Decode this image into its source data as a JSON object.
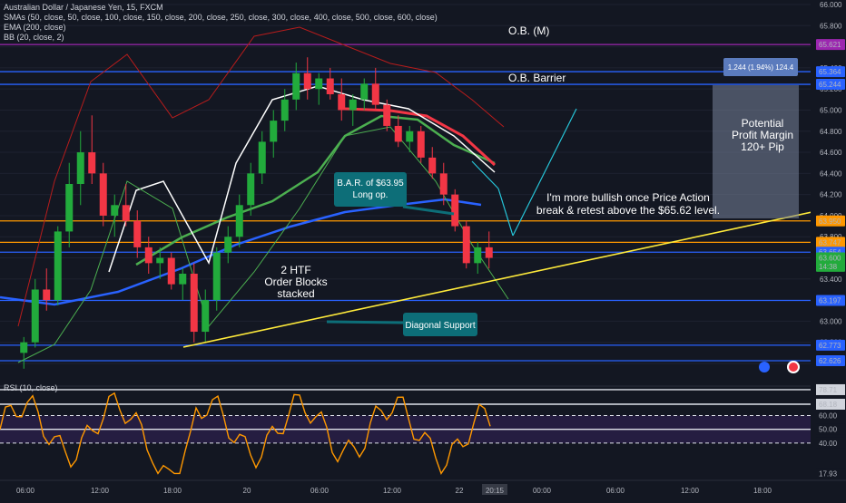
{
  "header": {
    "symbol": "Australian Dollar / Japanese Yen, 15, FXCM",
    "smas": "SMAs (50, close, 50, close, 100, close, 150, close, 200, close, 250, close, 300, close, 400, close, 500, close, 600, close)",
    "ema": "EMA (200, close)",
    "bb": "BB (20, close, 2)",
    "rsi": "RSI (10, close)"
  },
  "chart_data": {
    "type": "candlestick",
    "price_axis_ticks": [
      "66.000",
      "65.800",
      "65.600",
      "65.400",
      "65.200",
      "65.000",
      "64.800",
      "64.600",
      "64.400",
      "64.200",
      "64.000",
      "63.800",
      "63.600",
      "63.400",
      "63.200",
      "63.000",
      "62.800",
      "62.600"
    ],
    "price_labels": [
      {
        "value": "65.621",
        "color": "#9c27b0"
      },
      {
        "value": "65.364",
        "color": "#2962ff"
      },
      {
        "value": "65.244",
        "color": "#2962ff"
      },
      {
        "value": "63.950",
        "color": "#ff9800"
      },
      {
        "value": "63.747",
        "color": "#ff9800"
      },
      {
        "value": "63.654",
        "color": "#2962ff"
      },
      {
        "value": "63.600",
        "color": "#22ab3c"
      },
      {
        "value": "14:38",
        "color": "#22ab3c"
      },
      {
        "value": "63.197",
        "color": "#2962ff"
      },
      {
        "value": "62.773",
        "color": "#2962ff"
      },
      {
        "value": "62.626",
        "color": "#2962ff"
      }
    ],
    "horizontal_levels": [
      {
        "value": 65.621,
        "color": "#9c27b0"
      },
      {
        "value": 65.364,
        "color": "#2962ff"
      },
      {
        "value": 65.244,
        "color": "#2962ff"
      },
      {
        "value": 63.95,
        "color": "#ff9800"
      },
      {
        "value": 63.747,
        "color": "#ff9800"
      },
      {
        "value": 63.654,
        "color": "#2962ff"
      },
      {
        "value": 63.197,
        "color": "#2962ff"
      },
      {
        "value": 62.773,
        "color": "#2962ff"
      },
      {
        "value": 62.626,
        "color": "#2962ff"
      }
    ],
    "time_axis_ticks": [
      "06:00",
      "12:00",
      "18:00",
      "20",
      "06:00",
      "12:00",
      "22",
      "20:15",
      "00:00",
      "06:00",
      "12:00",
      "18:00"
    ],
    "rsi_axis_ticks": [
      "78.71",
      "68.18",
      "60.00",
      "50.00",
      "40.00",
      "17.93"
    ],
    "rsi_levels": [
      78.71,
      68.18,
      60,
      50,
      40
    ],
    "candles": [
      [
        62.7,
        62.85,
        62.55,
        62.8
      ],
      [
        62.8,
        63.4,
        62.75,
        63.3
      ],
      [
        63.3,
        63.5,
        63.1,
        63.2
      ],
      [
        63.2,
        63.9,
        63.15,
        63.85
      ],
      [
        63.85,
        64.5,
        63.7,
        64.3
      ],
      [
        64.3,
        64.8,
        64.1,
        64.6
      ],
      [
        64.6,
        64.95,
        64.3,
        64.4
      ],
      [
        64.4,
        64.5,
        63.9,
        64.0
      ],
      [
        64.0,
        64.2,
        63.8,
        64.1
      ],
      [
        64.1,
        64.3,
        63.9,
        63.95
      ],
      [
        63.95,
        64.05,
        63.6,
        63.7
      ],
      [
        63.7,
        63.8,
        63.45,
        63.55
      ],
      [
        63.55,
        63.7,
        63.4,
        63.6
      ],
      [
        63.6,
        63.65,
        63.3,
        63.35
      ],
      [
        63.35,
        63.5,
        63.2,
        63.45
      ],
      [
        63.45,
        63.55,
        62.8,
        62.9
      ],
      [
        62.9,
        63.3,
        62.8,
        63.2
      ],
      [
        63.2,
        63.7,
        63.1,
        63.65
      ],
      [
        63.65,
        63.9,
        63.55,
        63.8
      ],
      [
        63.8,
        64.2,
        63.7,
        64.1
      ],
      [
        64.1,
        64.5,
        64.0,
        64.4
      ],
      [
        64.4,
        64.8,
        64.3,
        64.7
      ],
      [
        64.7,
        65.0,
        64.55,
        64.9
      ],
      [
        64.9,
        65.2,
        64.8,
        65.1
      ],
      [
        65.1,
        65.45,
        65.0,
        65.35
      ],
      [
        65.35,
        65.5,
        65.1,
        65.2
      ],
      [
        65.2,
        65.35,
        65.05,
        65.3
      ],
      [
        65.3,
        65.4,
        65.1,
        65.15
      ],
      [
        65.15,
        65.3,
        64.9,
        65.0
      ],
      [
        65.0,
        65.15,
        64.85,
        65.1
      ],
      [
        65.1,
        65.3,
        65.0,
        65.25
      ],
      [
        65.25,
        65.4,
        65.0,
        65.05
      ],
      [
        65.05,
        65.1,
        64.8,
        64.85
      ],
      [
        64.85,
        64.95,
        64.65,
        64.7
      ],
      [
        64.7,
        64.85,
        64.6,
        64.8
      ],
      [
        64.8,
        64.85,
        64.5,
        64.55
      ],
      [
        64.55,
        64.65,
        64.35,
        64.4
      ],
      [
        64.4,
        64.5,
        64.1,
        64.2
      ],
      [
        64.2,
        64.25,
        63.85,
        63.9
      ],
      [
        63.9,
        63.95,
        63.5,
        63.55
      ],
      [
        63.55,
        63.75,
        63.45,
        63.7
      ],
      [
        63.7,
        63.85,
        63.5,
        63.6
      ]
    ]
  },
  "annotations": {
    "ob_m": "O.B. (M)",
    "ob_barrier": "O.B. Barrier",
    "profit_box_label": "1.244 (1.94%) 124.4",
    "profit_margin": [
      "Potential",
      "Profit Margin",
      "120+ Pip"
    ],
    "bar_box": [
      "B.A.R. of $63.95",
      "Long op."
    ],
    "bullish_note": [
      "I'm more bullish once Price Action",
      "break & retest above the $65.62 level."
    ],
    "htf": [
      "2 HTF",
      "Order Blocks",
      "stacked"
    ],
    "diagonal_support": "Diagonal Support"
  }
}
